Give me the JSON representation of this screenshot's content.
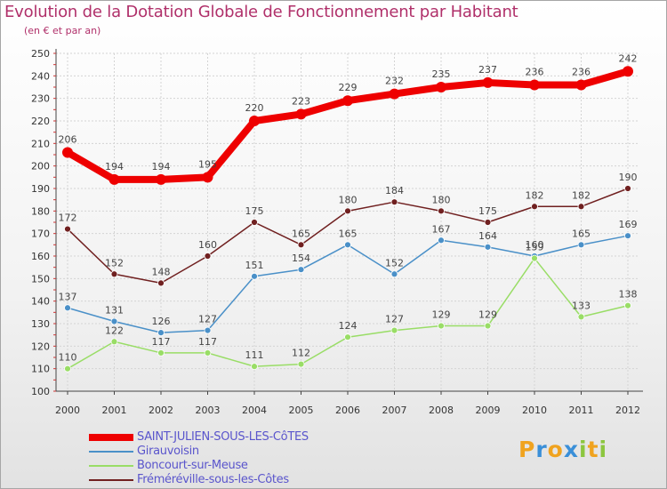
{
  "header": {
    "title": "Evolution de la Dotation Globale de Fonctionnement par Habitant",
    "subtitle": "(en € et par an)"
  },
  "brand": {
    "logo_text": "Proxiti",
    "letters": [
      "P",
      "r",
      "o",
      "x",
      "i",
      "t",
      "i"
    ]
  },
  "colors": {
    "title": "#b0306a",
    "legend_text": "#5a55cc",
    "grid": "#d4d4d4",
    "axis": "#444444",
    "axis_tick_marks": "#cc3333",
    "brand_letters": [
      "#f0a31f",
      "#3a8fd8",
      "#f0a31f",
      "#3a8fd8",
      "#8cc63f",
      "#f0a31f",
      "#8cc63f"
    ]
  },
  "chart_data": {
    "type": "line",
    "title": "Evolution de la Dotation Globale de Fonctionnement par Habitant",
    "subtitle": "(en € et par an)",
    "xlabel": "",
    "ylabel": "",
    "x": [
      "2000",
      "2001",
      "2002",
      "2003",
      "2004",
      "2005",
      "2006",
      "2007",
      "2008",
      "2009",
      "2010",
      "2011",
      "2012"
    ],
    "ylim": [
      100,
      250
    ],
    "yticks": [
      100,
      110,
      120,
      130,
      140,
      150,
      160,
      170,
      180,
      190,
      200,
      210,
      220,
      230,
      240,
      250
    ],
    "grid": true,
    "legend_position": "bottom-left",
    "series": [
      {
        "name": "SAINT-JULIEN-SOUS-LES-CôTES",
        "color": "#ee0000",
        "emphasis": true,
        "values": [
          206,
          194,
          194,
          195,
          220,
          223,
          229,
          232,
          235,
          237,
          236,
          236,
          242
        ]
      },
      {
        "name": "Girauvoisin",
        "color": "#4a90c8",
        "values": [
          137,
          131,
          126,
          127,
          151,
          154,
          165,
          152,
          167,
          164,
          160,
          165,
          169
        ]
      },
      {
        "name": "Boncourt-sur-Meuse",
        "color": "#99dd66",
        "values": [
          110,
          122,
          117,
          117,
          111,
          112,
          124,
          127,
          129,
          129,
          159,
          133,
          138
        ]
      },
      {
        "name": "Fréméréville-sous-les-Côtes",
        "color": "#702020",
        "values": [
          172,
          152,
          148,
          160,
          175,
          165,
          180,
          184,
          180,
          175,
          182,
          182,
          190
        ]
      }
    ]
  }
}
